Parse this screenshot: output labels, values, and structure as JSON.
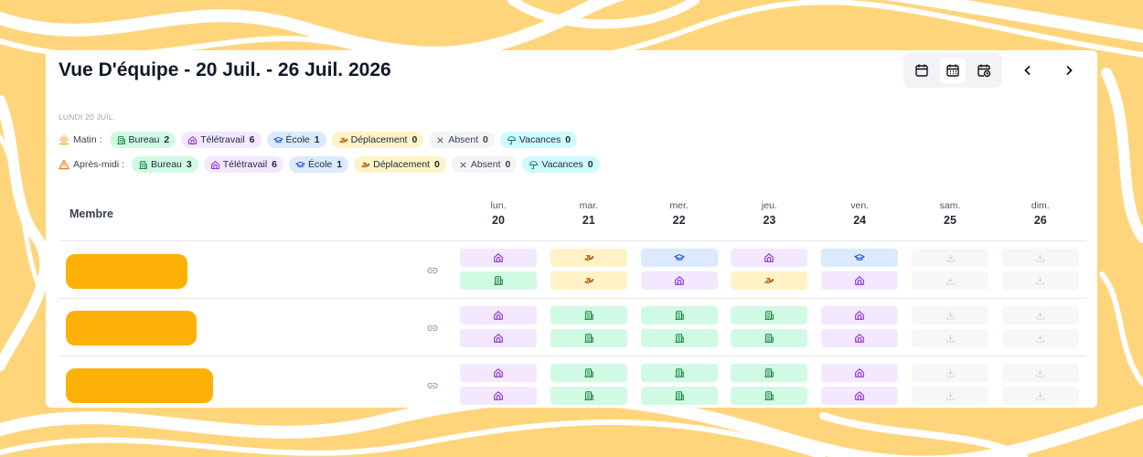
{
  "header": {
    "title": "Vue D'équipe - 20 Juil. - 26 Juil. 2026"
  },
  "summary": {
    "date_label": "LUNDI 20 JUIL.",
    "legend": [
      {
        "label": "Bureau",
        "bg": "#d1fae5",
        "fg": "#15803d"
      },
      {
        "label": "Télétravail",
        "bg": "#f3e8ff",
        "fg": "#7e22ce"
      },
      {
        "label": "École",
        "bg": "#dbeafe",
        "fg": "#1d4ed8"
      },
      {
        "label": "Déplacement",
        "bg": "#fef3c7",
        "fg": "#b45309"
      },
      {
        "label": "Absent",
        "bg": "#f3f4f6",
        "fg": "#4b5563"
      },
      {
        "label": "Vacances",
        "bg": "#cffafe",
        "fg": "#0e7490"
      }
    ],
    "rows": [
      {
        "label": "Matin :",
        "counts": [
          2,
          6,
          1,
          0,
          0,
          0
        ]
      },
      {
        "label": "Après-midi :",
        "counts": [
          3,
          6,
          1,
          0,
          0,
          0
        ]
      }
    ]
  },
  "table": {
    "member_header": "Membre",
    "days": [
      {
        "weekday": "lun.",
        "day": 20
      },
      {
        "weekday": "mar.",
        "day": 21
      },
      {
        "weekday": "mer.",
        "day": 22
      },
      {
        "weekday": "jeu.",
        "day": 23
      },
      {
        "weekday": "ven.",
        "day": 24
      },
      {
        "weekday": "sam.",
        "day": 25
      },
      {
        "weekday": "dim.",
        "day": 26
      }
    ],
    "members": [
      {
        "am": [
          "Télétravail",
          "Déplacement",
          "École",
          "Télétravail",
          "École",
          null,
          null
        ],
        "pm": [
          "Bureau",
          "Déplacement",
          "Télétravail",
          "Déplacement",
          "Télétravail",
          null,
          null
        ]
      },
      {
        "am": [
          "Télétravail",
          "Bureau",
          "Bureau",
          "Bureau",
          "Télétravail",
          null,
          null
        ],
        "pm": [
          "Télétravail",
          "Bureau",
          "Bureau",
          "Bureau",
          "Télétravail",
          null,
          null
        ]
      },
      {
        "am": [
          "Télétravail",
          "Bureau",
          "Bureau",
          "Bureau",
          "Télétravail",
          null,
          null
        ],
        "pm": [
          "Télétravail",
          "Bureau",
          "Bureau",
          "Bureau",
          "Télétravail",
          null,
          null
        ]
      }
    ]
  }
}
